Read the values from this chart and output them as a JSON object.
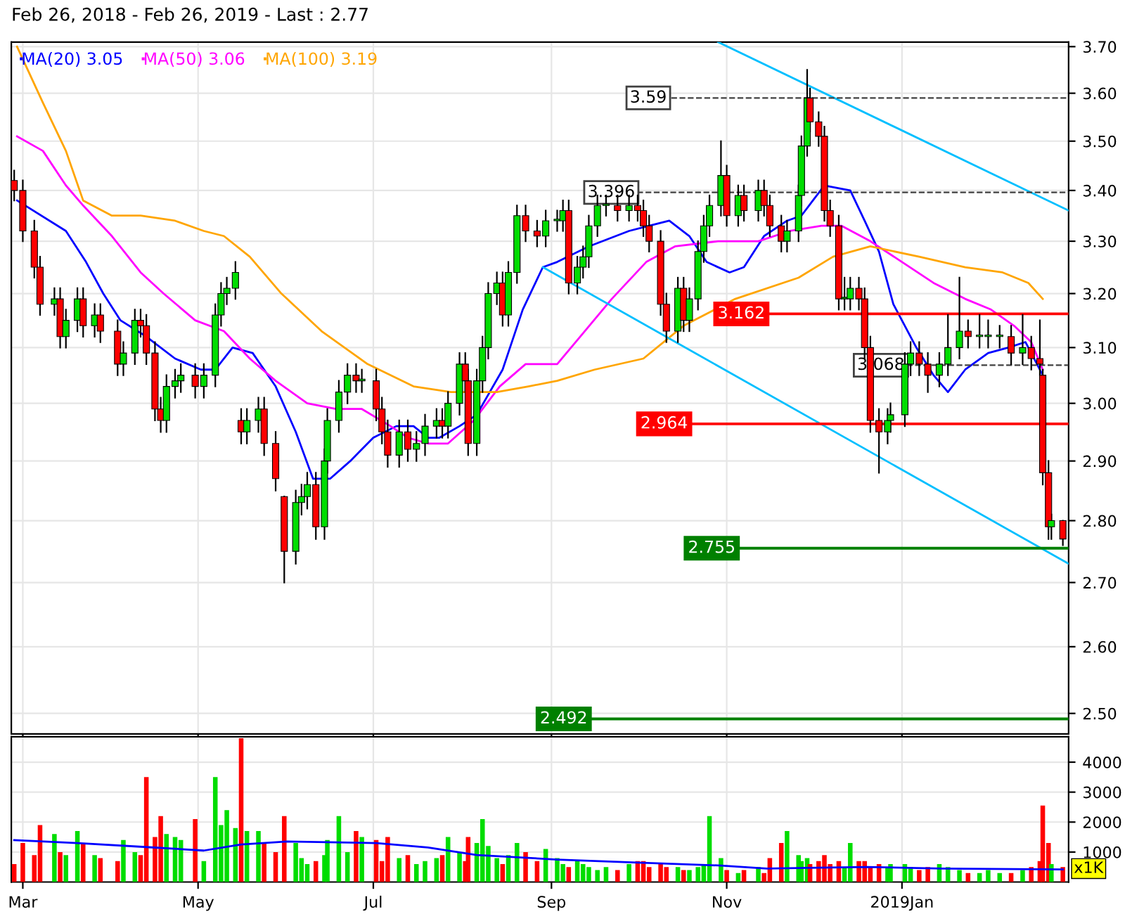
{
  "chart_data": [
    {
      "type": "candlestick",
      "title": "Feb 26, 2018 - Feb 26, 2019 - Last : 2.77",
      "legend": "top left",
      "log": true,
      "grid": true,
      "tick_labels": "y",
      "xlim": [
        "2018-02-25",
        "2019-02-28"
      ],
      "xticks": [
        {
          "value": "2018-03-01",
          "label": null
        },
        {
          "value": "2018-05-01",
          "label": null
        },
        {
          "value": "2018-07-01",
          "label": null
        },
        {
          "value": "2018-09-01",
          "label": null
        },
        {
          "value": "2018-11-01",
          "label": null
        },
        {
          "value": "2019-01-01",
          "label": null
        }
      ],
      "ylim": [
        2.47,
        3.71
      ],
      "yticks": [
        {
          "value": 2.5,
          "label": "2.50"
        },
        {
          "value": 2.6,
          "label": "2.60"
        },
        {
          "value": 2.7,
          "label": "2.70"
        },
        {
          "value": 2.8,
          "label": "2.80"
        },
        {
          "value": 2.9,
          "label": "2.90"
        },
        {
          "value": 3.0,
          "label": "3.00"
        },
        {
          "value": 3.1,
          "label": "3.10"
        },
        {
          "value": 3.2,
          "label": "3.20"
        },
        {
          "value": 3.3,
          "label": "3.30"
        },
        {
          "value": 3.4,
          "label": "3.40"
        },
        {
          "value": 3.5,
          "label": "3.50"
        },
        {
          "value": 3.6,
          "label": "3.60"
        },
        {
          "value": 3.7,
          "label": "3.70"
        }
      ],
      "x": [
        "2018-02-26",
        "2018-03-01",
        "2018-03-05",
        "2018-03-07",
        "2018-03-12",
        "2018-03-14",
        "2018-03-16",
        "2018-03-20",
        "2018-03-22",
        "2018-03-26",
        "2018-03-28",
        "2018-04-03",
        "2018-04-05",
        "2018-04-09",
        "2018-04-11",
        "2018-04-13",
        "2018-04-16",
        "2018-04-18",
        "2018-04-20",
        "2018-04-23",
        "2018-04-25",
        "2018-04-30",
        "2018-05-03",
        "2018-05-07",
        "2018-05-09",
        "2018-05-11",
        "2018-05-14",
        "2018-05-16",
        "2018-05-18",
        "2018-05-22",
        "2018-05-24",
        "2018-05-28",
        "2018-05-31",
        "2018-06-04",
        "2018-06-06",
        "2018-06-08",
        "2018-06-11",
        "2018-06-14",
        "2018-06-15",
        "2018-06-19",
        "2018-06-22",
        "2018-06-25",
        "2018-06-27",
        "2018-07-02",
        "2018-07-04",
        "2018-07-06",
        "2018-07-10",
        "2018-07-13",
        "2018-07-16",
        "2018-07-19",
        "2018-07-23",
        "2018-07-25",
        "2018-07-27",
        "2018-07-31",
        "2018-08-02",
        "2018-08-03",
        "2018-08-06",
        "2018-08-08",
        "2018-08-10",
        "2018-08-13",
        "2018-08-15",
        "2018-08-17",
        "2018-08-20",
        "2018-08-23",
        "2018-08-27",
        "2018-08-30",
        "2018-09-03",
        "2018-09-05",
        "2018-09-07",
        "2018-09-10",
        "2018-09-12",
        "2018-09-14",
        "2018-09-17",
        "2018-09-20",
        "2018-09-24",
        "2018-09-28",
        "2018-10-01",
        "2018-10-03",
        "2018-10-05",
        "2018-10-09",
        "2018-10-11",
        "2018-10-15",
        "2018-10-17",
        "2018-10-19",
        "2018-10-22",
        "2018-10-24",
        "2018-10-26",
        "2018-10-30",
        "2018-11-01",
        "2018-11-05",
        "2018-11-07",
        "2018-11-12",
        "2018-11-14",
        "2018-11-16",
        "2018-11-20",
        "2018-11-22",
        "2018-11-26",
        "2018-11-27",
        "2018-11-29",
        "2018-11-30",
        "2018-12-03",
        "2018-12-05",
        "2018-12-07",
        "2018-12-10",
        "2018-12-12",
        "2018-12-14",
        "2018-12-17",
        "2018-12-19",
        "2018-12-21",
        "2018-12-24",
        "2018-12-27",
        "2018-12-28",
        "2019-01-02",
        "2019-01-04",
        "2019-01-07",
        "2019-01-10",
        "2019-01-14",
        "2019-01-17",
        "2019-01-21",
        "2019-01-24",
        "2019-01-28",
        "2019-01-31",
        "2019-02-04",
        "2019-02-08",
        "2019-02-12",
        "2019-02-15",
        "2019-02-18",
        "2019-02-19",
        "2019-02-21",
        "2019-02-22",
        "2019-02-26"
      ],
      "ohlc": [
        [
          3.42,
          3.44,
          3.38,
          3.4
        ],
        [
          3.4,
          3.42,
          3.3,
          3.32
        ],
        [
          3.32,
          3.34,
          3.23,
          3.25
        ],
        [
          3.25,
          3.27,
          3.16,
          3.18
        ],
        [
          3.18,
          3.21,
          3.16,
          3.19
        ],
        [
          3.19,
          3.21,
          3.1,
          3.12
        ],
        [
          3.12,
          3.17,
          3.1,
          3.15
        ],
        [
          3.15,
          3.21,
          3.13,
          3.19
        ],
        [
          3.19,
          3.21,
          3.12,
          3.14
        ],
        [
          3.14,
          3.18,
          3.12,
          3.16
        ],
        [
          3.16,
          3.18,
          3.11,
          3.13
        ],
        [
          3.13,
          3.15,
          3.05,
          3.07
        ],
        [
          3.07,
          3.11,
          3.05,
          3.09
        ],
        [
          3.09,
          3.17,
          3.07,
          3.15
        ],
        [
          3.15,
          3.17,
          3.12,
          3.14
        ],
        [
          3.14,
          3.16,
          3.07,
          3.09
        ],
        [
          3.09,
          3.11,
          2.97,
          2.99
        ],
        [
          2.99,
          3.01,
          2.95,
          2.97
        ],
        [
          2.97,
          3.05,
          2.95,
          3.03
        ],
        [
          3.03,
          3.06,
          3.01,
          3.04
        ],
        [
          3.04,
          3.07,
          3.02,
          3.05
        ],
        [
          3.05,
          3.07,
          3.01,
          3.03
        ],
        [
          3.03,
          3.07,
          3.01,
          3.05
        ],
        [
          3.05,
          3.18,
          3.03,
          3.16
        ],
        [
          3.16,
          3.22,
          3.14,
          3.2
        ],
        [
          3.2,
          3.23,
          3.18,
          3.21
        ],
        [
          3.21,
          3.26,
          3.19,
          3.24
        ],
        [
          2.97,
          2.99,
          2.93,
          2.95
        ],
        [
          2.95,
          2.99,
          2.93,
          2.97
        ],
        [
          2.97,
          3.01,
          2.95,
          2.99
        ],
        [
          2.99,
          3.01,
          2.91,
          2.93
        ],
        [
          2.93,
          2.95,
          2.85,
          2.87
        ],
        [
          2.84,
          2.84,
          2.7,
          2.75
        ],
        [
          2.75,
          2.85,
          2.73,
          2.83
        ],
        [
          2.83,
          2.86,
          2.81,
          2.84
        ],
        [
          2.84,
          2.88,
          2.82,
          2.86
        ],
        [
          2.86,
          2.88,
          2.77,
          2.79
        ],
        [
          2.79,
          2.92,
          2.77,
          2.9
        ],
        [
          2.9,
          2.99,
          2.88,
          2.97
        ],
        [
          2.97,
          3.04,
          2.95,
          3.02
        ],
        [
          3.02,
          3.07,
          3.0,
          3.05
        ],
        [
          3.05,
          3.07,
          3.02,
          3.04
        ],
        [
          3.04,
          3.06,
          3.02,
          3.04
        ],
        [
          3.04,
          3.06,
          2.97,
          2.99
        ],
        [
          2.99,
          3.01,
          2.93,
          2.95
        ],
        [
          2.95,
          2.97,
          2.89,
          2.91
        ],
        [
          2.91,
          2.97,
          2.89,
          2.95
        ],
        [
          2.95,
          2.97,
          2.9,
          2.92
        ],
        [
          2.92,
          2.95,
          2.9,
          2.93
        ],
        [
          2.93,
          2.98,
          2.91,
          2.96
        ],
        [
          2.96,
          2.99,
          2.94,
          2.97
        ],
        [
          2.97,
          2.99,
          2.94,
          2.96
        ],
        [
          2.96,
          3.02,
          2.94,
          3.0
        ],
        [
          3.0,
          3.09,
          2.98,
          3.07
        ],
        [
          3.07,
          3.09,
          3.02,
          3.04
        ],
        [
          3.04,
          3.06,
          2.91,
          2.93
        ],
        [
          2.93,
          3.06,
          2.91,
          3.04
        ],
        [
          3.04,
          3.12,
          3.02,
          3.1
        ],
        [
          3.1,
          3.22,
          3.08,
          3.2
        ],
        [
          3.2,
          3.24,
          3.18,
          3.22
        ],
        [
          3.22,
          3.24,
          3.14,
          3.16
        ],
        [
          3.16,
          3.26,
          3.14,
          3.24
        ],
        [
          3.24,
          3.37,
          3.22,
          3.35
        ],
        [
          3.35,
          3.37,
          3.3,
          3.32
        ],
        [
          3.32,
          3.34,
          3.29,
          3.31
        ],
        [
          3.31,
          3.36,
          3.29,
          3.34
        ],
        [
          3.34,
          3.36,
          3.32,
          3.34
        ],
        [
          3.34,
          3.38,
          3.32,
          3.36
        ],
        [
          3.36,
          3.38,
          3.2,
          3.22
        ],
        [
          3.22,
          3.27,
          3.2,
          3.25
        ],
        [
          3.25,
          3.29,
          3.23,
          3.27
        ],
        [
          3.27,
          3.35,
          3.25,
          3.33
        ],
        [
          3.33,
          3.39,
          3.31,
          3.37
        ],
        [
          3.37,
          3.39,
          3.35,
          3.37
        ],
        [
          3.37,
          3.39,
          3.34,
          3.36
        ],
        [
          3.36,
          3.39,
          3.34,
          3.37
        ],
        [
          3.37,
          3.39,
          3.34,
          3.36
        ],
        [
          3.36,
          3.38,
          3.31,
          3.33
        ],
        [
          3.33,
          3.35,
          3.28,
          3.3
        ],
        [
          3.3,
          3.32,
          3.16,
          3.18
        ],
        [
          3.18,
          3.2,
          3.11,
          3.13
        ],
        [
          3.13,
          3.23,
          3.11,
          3.21
        ],
        [
          3.21,
          3.23,
          3.13,
          3.15
        ],
        [
          3.15,
          3.21,
          3.13,
          3.19
        ],
        [
          3.19,
          3.3,
          3.17,
          3.28
        ],
        [
          3.28,
          3.35,
          3.26,
          3.33
        ],
        [
          3.33,
          3.39,
          3.31,
          3.37
        ],
        [
          3.37,
          3.5,
          3.35,
          3.43
        ],
        [
          3.43,
          3.45,
          3.33,
          3.35
        ],
        [
          3.35,
          3.41,
          3.33,
          3.39
        ],
        [
          3.39,
          3.41,
          3.34,
          3.36
        ],
        [
          3.36,
          3.42,
          3.34,
          3.4
        ],
        [
          3.4,
          3.42,
          3.35,
          3.37
        ],
        [
          3.37,
          3.39,
          3.31,
          3.33
        ],
        [
          3.33,
          3.35,
          3.28,
          3.3
        ],
        [
          3.3,
          3.34,
          3.28,
          3.32
        ],
        [
          3.32,
          3.41,
          3.3,
          3.39
        ],
        [
          3.39,
          3.51,
          3.37,
          3.49
        ],
        [
          3.49,
          3.65,
          3.47,
          3.59
        ],
        [
          3.59,
          3.61,
          3.52,
          3.54
        ],
        [
          3.54,
          3.56,
          3.49,
          3.51
        ],
        [
          3.51,
          3.53,
          3.34,
          3.36
        ],
        [
          3.36,
          3.38,
          3.31,
          3.33
        ],
        [
          3.33,
          3.35,
          3.17,
          3.19
        ],
        [
          3.19,
          3.23,
          3.17,
          3.19
        ],
        [
          3.19,
          3.23,
          3.17,
          3.21
        ],
        [
          3.21,
          3.23,
          3.17,
          3.19
        ],
        [
          3.19,
          3.21,
          3.08,
          3.1
        ],
        [
          3.1,
          3.12,
          2.95,
          2.97
        ],
        [
          2.97,
          2.99,
          2.88,
          2.95
        ],
        [
          2.95,
          2.99,
          2.93,
          2.97
        ],
        [
          2.97,
          3.0,
          2.95,
          2.98
        ],
        [
          2.98,
          3.09,
          2.96,
          3.07
        ],
        [
          3.07,
          3.11,
          3.05,
          3.09
        ],
        [
          3.09,
          3.11,
          3.05,
          3.07
        ],
        [
          3.07,
          3.09,
          3.02,
          3.05
        ],
        [
          3.05,
          3.09,
          3.03,
          3.07
        ],
        [
          3.07,
          3.16,
          3.05,
          3.1
        ],
        [
          3.1,
          3.23,
          3.08,
          3.13
        ],
        [
          3.13,
          3.15,
          3.1,
          3.12
        ],
        [
          3.12,
          3.16,
          3.1,
          3.12
        ],
        [
          3.12,
          3.15,
          3.1,
          3.12
        ],
        [
          3.12,
          3.14,
          3.1,
          3.12
        ],
        [
          3.12,
          3.14,
          3.07,
          3.09
        ],
        [
          3.09,
          3.16,
          3.07,
          3.1
        ],
        [
          3.1,
          3.12,
          3.06,
          3.08
        ],
        [
          3.08,
          3.15,
          3.05,
          3.07
        ],
        [
          3.05,
          3.06,
          2.86,
          2.88
        ],
        [
          2.88,
          2.9,
          2.77,
          2.79
        ],
        [
          2.79,
          2.81,
          2.77,
          2.8
        ],
        [
          2.8,
          2.8,
          2.76,
          2.77
        ]
      ],
      "series": [
        {
          "name": "MA(20) 3.05",
          "type": "line",
          "color": "#0000ff",
          "x": [
            "2018-02-27",
            "2018-03-16",
            "2018-03-23",
            "2018-03-29",
            "2018-04-04",
            "2018-04-13",
            "2018-04-23",
            "2018-05-02",
            "2018-05-07",
            "2018-05-13",
            "2018-05-20",
            "2018-05-28",
            "2018-06-04",
            "2018-06-10",
            "2018-06-16",
            "2018-06-23",
            "2018-07-01",
            "2018-07-09",
            "2018-07-15",
            "2018-07-20",
            "2018-07-24",
            "2018-07-31",
            "2018-08-06",
            "2018-08-15",
            "2018-08-22",
            "2018-08-29",
            "2018-09-03",
            "2018-09-14",
            "2018-09-28",
            "2018-10-05",
            "2018-10-12",
            "2018-10-19",
            "2018-10-25",
            "2018-11-02",
            "2018-11-07",
            "2018-11-14",
            "2018-11-22",
            "2018-11-27",
            "2018-12-01",
            "2018-12-05",
            "2018-12-14",
            "2018-12-19",
            "2018-12-24",
            "2018-12-29",
            "2019-01-06",
            "2019-01-12",
            "2019-01-17",
            "2019-01-23",
            "2019-01-31",
            "2019-02-07",
            "2019-02-13",
            "2019-02-19"
          ],
          "values": [
            3.38,
            3.32,
            3.26,
            3.2,
            3.15,
            3.12,
            3.08,
            3.06,
            3.06,
            3.1,
            3.09,
            3.03,
            2.95,
            2.87,
            2.87,
            2.9,
            2.94,
            2.96,
            2.96,
            2.94,
            2.94,
            2.96,
            2.98,
            3.06,
            3.17,
            3.25,
            3.26,
            3.29,
            3.32,
            3.33,
            3.34,
            3.31,
            3.26,
            3.24,
            3.25,
            3.31,
            3.34,
            3.35,
            3.38,
            3.41,
            3.4,
            3.34,
            3.28,
            3.18,
            3.1,
            3.05,
            3.02,
            3.06,
            3.09,
            3.1,
            3.11,
            3.05
          ]
        },
        {
          "name": "MA(50) 3.06",
          "type": "line",
          "color": "#ff00ff",
          "x": [
            "2018-02-27",
            "2018-03-08",
            "2018-03-16",
            "2018-03-22",
            "2018-04-01",
            "2018-04-11",
            "2018-04-19",
            "2018-04-30",
            "2018-05-10",
            "2018-05-19",
            "2018-05-28",
            "2018-06-08",
            "2018-06-18",
            "2018-06-27",
            "2018-07-07",
            "2018-07-13",
            "2018-07-20",
            "2018-07-27",
            "2018-08-05",
            "2018-08-14",
            "2018-08-23",
            "2018-09-03",
            "2018-09-11",
            "2018-09-22",
            "2018-10-04",
            "2018-10-14",
            "2018-10-29",
            "2018-11-12",
            "2018-11-23",
            "2018-12-04",
            "2018-12-11",
            "2018-12-21",
            "2019-01-01",
            "2019-01-12",
            "2019-01-23",
            "2019-02-01",
            "2019-02-09",
            "2019-02-15",
            "2019-02-19"
          ],
          "values": [
            3.51,
            3.48,
            3.41,
            3.37,
            3.31,
            3.24,
            3.2,
            3.15,
            3.13,
            3.08,
            3.04,
            3.0,
            2.99,
            2.99,
            2.96,
            2.94,
            2.93,
            2.93,
            2.97,
            3.03,
            3.07,
            3.07,
            3.12,
            3.19,
            3.26,
            3.29,
            3.3,
            3.3,
            3.32,
            3.33,
            3.33,
            3.3,
            3.26,
            3.22,
            3.19,
            3.17,
            3.14,
            3.11,
            3.06
          ]
        },
        {
          "name": "MA(100) 3.19",
          "type": "line",
          "color": "#ffa500",
          "x": [
            "2018-02-27",
            "2018-03-08",
            "2018-03-16",
            "2018-03-22",
            "2018-04-01",
            "2018-04-11",
            "2018-04-23",
            "2018-05-03",
            "2018-05-10",
            "2018-05-19",
            "2018-05-30",
            "2018-06-13",
            "2018-06-29",
            "2018-07-15",
            "2018-07-28",
            "2018-08-13",
            "2018-08-24",
            "2018-09-03",
            "2018-09-16",
            "2018-10-03",
            "2018-10-17",
            "2018-11-04",
            "2018-11-26",
            "2018-12-08",
            "2018-12-21",
            "2019-01-07",
            "2019-01-23",
            "2019-02-05",
            "2019-02-14",
            "2019-02-19"
          ],
          "values": [
            3.7,
            3.58,
            3.48,
            3.38,
            3.35,
            3.35,
            3.34,
            3.32,
            3.31,
            3.27,
            3.2,
            3.13,
            3.07,
            3.03,
            3.02,
            3.02,
            3.03,
            3.04,
            3.06,
            3.08,
            3.14,
            3.19,
            3.23,
            3.27,
            3.29,
            3.27,
            3.25,
            3.24,
            3.22,
            3.19
          ]
        },
        {
          "type": "line",
          "color": "#00bfff",
          "x": [
            "2018-10-29",
            "2019-02-28"
          ],
          "values": [
            3.71,
            3.36
          ]
        },
        {
          "type": "line",
          "color": "#00bfff",
          "x": [
            "2018-08-29",
            "2019-02-28"
          ],
          "values": [
            3.25,
            2.73
          ]
        }
      ],
      "ref_lines": [
        {
          "axis": "y",
          "value": 3.59,
          "label": "3.59",
          "color": "#404040",
          "line_style": "dashed"
        },
        {
          "axis": "y",
          "value": 3.396,
          "label": "3.396",
          "color": "#404040",
          "line_style": "dashed"
        },
        {
          "axis": "y",
          "value": 3.162,
          "label": "3.162",
          "color": "#ff0000",
          "line_style": "solid"
        },
        {
          "axis": "y",
          "value": 3.068,
          "label": "3.068",
          "color": "#404040",
          "line_style": "dashed"
        },
        {
          "axis": "y",
          "value": 2.964,
          "label": "2.964",
          "color": "#ff0000",
          "line_style": "solid"
        },
        {
          "axis": "y",
          "value": 2.755,
          "label": "2.755",
          "color": "#008000",
          "line_style": "solid"
        },
        {
          "axis": "y",
          "value": 2.492,
          "label": "2.492",
          "color": "#008000",
          "line_style": "solid"
        }
      ]
    },
    {
      "type": "bar",
      "grid": true,
      "xlim": [
        "2018-02-25",
        "2019-02-28"
      ],
      "xticks": [
        {
          "value": "2018-03-01",
          "label": "Mar"
        },
        {
          "value": "2018-05-01",
          "label": "May"
        },
        {
          "value": "2018-07-01",
          "label": "Jul"
        },
        {
          "value": "2018-09-01",
          "label": "Sep"
        },
        {
          "value": "2018-11-01",
          "label": "Nov"
        },
        {
          "value": "2019-01-01",
          "label": "2019Jan"
        }
      ],
      "ylim": [
        0,
        4850
      ],
      "yticks": [
        1000,
        2000,
        3000,
        4000
      ],
      "annotations": [
        "x1K"
      ],
      "colors": [
        "#ff0000",
        "#ff0000",
        "#ff0000",
        "#ff0000",
        "#00dd00",
        "#ff0000",
        "#00dd00",
        "#00dd00",
        "#ff0000",
        "#00dd00",
        "#ff0000",
        "#ff0000",
        "#00dd00",
        "#00dd00",
        "#ff0000",
        "#ff0000",
        "#ff0000",
        "#ff0000",
        "#00dd00",
        "#00dd00",
        "#00dd00",
        "#ff0000",
        "#00dd00",
        "#00dd00",
        "#00dd00",
        "#00dd00",
        "#00dd00",
        "#ff0000",
        "#00dd00",
        "#00dd00",
        "#ff0000",
        "#ff0000",
        "#ff0000",
        "#00dd00",
        "#00dd00",
        "#00dd00",
        "#ff0000",
        "#00dd00",
        "#00dd00",
        "#00dd00",
        "#00dd00",
        "#ff0000",
        "#00dd00",
        "#ff0000",
        "#ff0000",
        "#ff0000",
        "#00dd00",
        "#ff0000",
        "#00dd00",
        "#00dd00",
        "#00dd00",
        "#ff0000",
        "#00dd00",
        "#00dd00",
        "#ff0000",
        "#ff0000",
        "#00dd00",
        "#00dd00",
        "#00dd00",
        "#00dd00",
        "#ff0000",
        "#00dd00",
        "#00dd00",
        "#ff0000",
        "#ff0000",
        "#00dd00",
        "#00dd00",
        "#00dd00",
        "#ff0000",
        "#00dd00",
        "#00dd00",
        "#00dd00",
        "#00dd00",
        "#00dd00",
        "#ff0000",
        "#00dd00",
        "#ff0000",
        "#ff0000",
        "#ff0000",
        "#ff0000",
        "#ff0000",
        "#00dd00",
        "#ff0000",
        "#00dd00",
        "#00dd00",
        "#00dd00",
        "#00dd00",
        "#00dd00",
        "#ff0000",
        "#00dd00",
        "#ff0000",
        "#00dd00",
        "#ff0000",
        "#ff0000",
        "#ff0000",
        "#00dd00",
        "#00dd00",
        "#00dd00",
        "#00dd00",
        "#ff0000",
        "#ff0000",
        "#ff0000",
        "#ff0000",
        "#ff0000",
        "#00dd00",
        "#00dd00",
        "#ff0000",
        "#ff0000",
        "#ff0000",
        "#ff0000",
        "#00dd00",
        "#00dd00",
        "#00dd00",
        "#00dd00",
        "#ff0000",
        "#ff0000",
        "#00dd00",
        "#00dd00",
        "#00dd00",
        "#ff0000",
        "#00dd00",
        "#00dd00",
        "#00dd00",
        "#ff0000",
        "#00dd00",
        "#ff0000",
        "#ff0000",
        "#ff0000",
        "#ff0000",
        "#00dd00",
        "#ff0000"
      ],
      "x": [
        "2018-02-26",
        "2018-03-01",
        "2018-03-05",
        "2018-03-07",
        "2018-03-12",
        "2018-03-14",
        "2018-03-16",
        "2018-03-20",
        "2018-03-22",
        "2018-03-26",
        "2018-03-28",
        "2018-04-03",
        "2018-04-05",
        "2018-04-09",
        "2018-04-11",
        "2018-04-13",
        "2018-04-16",
        "2018-04-18",
        "2018-04-20",
        "2018-04-23",
        "2018-04-25",
        "2018-04-30",
        "2018-05-03",
        "2018-05-07",
        "2018-05-09",
        "2018-05-11",
        "2018-05-14",
        "2018-05-16",
        "2018-05-18",
        "2018-05-22",
        "2018-05-24",
        "2018-05-28",
        "2018-05-31",
        "2018-06-04",
        "2018-06-06",
        "2018-06-08",
        "2018-06-11",
        "2018-06-14",
        "2018-06-15",
        "2018-06-19",
        "2018-06-22",
        "2018-06-25",
        "2018-06-27",
        "2018-07-02",
        "2018-07-04",
        "2018-07-06",
        "2018-07-10",
        "2018-07-13",
        "2018-07-16",
        "2018-07-19",
        "2018-07-23",
        "2018-07-25",
        "2018-07-27",
        "2018-07-31",
        "2018-08-02",
        "2018-08-03",
        "2018-08-06",
        "2018-08-08",
        "2018-08-10",
        "2018-08-13",
        "2018-08-15",
        "2018-08-17",
        "2018-08-20",
        "2018-08-23",
        "2018-08-27",
        "2018-08-30",
        "2018-09-03",
        "2018-09-05",
        "2018-09-07",
        "2018-09-10",
        "2018-09-12",
        "2018-09-14",
        "2018-09-17",
        "2018-09-20",
        "2018-09-24",
        "2018-09-28",
        "2018-10-01",
        "2018-10-03",
        "2018-10-05",
        "2018-10-09",
        "2018-10-11",
        "2018-10-15",
        "2018-10-17",
        "2018-10-19",
        "2018-10-22",
        "2018-10-24",
        "2018-10-26",
        "2018-10-30",
        "2018-11-01",
        "2018-11-05",
        "2018-11-07",
        "2018-11-12",
        "2018-11-14",
        "2018-11-16",
        "2018-11-20",
        "2018-11-22",
        "2018-11-26",
        "2018-11-27",
        "2018-11-29",
        "2018-11-30",
        "2018-12-03",
        "2018-12-05",
        "2018-12-07",
        "2018-12-10",
        "2018-12-12",
        "2018-12-14",
        "2018-12-17",
        "2018-12-19",
        "2018-12-21",
        "2018-12-24",
        "2018-12-27",
        "2018-12-28",
        "2019-01-02",
        "2019-01-04",
        "2019-01-07",
        "2019-01-10",
        "2019-01-14",
        "2019-01-17",
        "2019-01-21",
        "2019-01-24",
        "2019-01-28",
        "2019-01-31",
        "2019-02-04",
        "2019-02-08",
        "2019-02-12",
        "2019-02-15",
        "2019-02-18",
        "2019-02-19",
        "2019-02-21",
        "2019-02-22",
        "2019-02-26"
      ],
      "values": [
        600,
        1300,
        900,
        1900,
        1600,
        1000,
        900,
        1700,
        1300,
        900,
        800,
        700,
        1400,
        1000,
        900,
        3500,
        1500,
        2200,
        1600,
        1500,
        1400,
        2100,
        700,
        3500,
        1900,
        2400,
        1800,
        4800,
        1700,
        1700,
        1300,
        1000,
        2200,
        1300,
        800,
        600,
        700,
        900,
        1400,
        2200,
        1000,
        1700,
        1500,
        1400,
        700,
        1500,
        800,
        900,
        600,
        700,
        800,
        900,
        1500,
        1000,
        700,
        1500,
        1300,
        2100,
        1200,
        800,
        600,
        900,
        1300,
        1000,
        700,
        1100,
        800,
        600,
        500,
        700,
        600,
        500,
        400,
        500,
        400,
        600,
        700,
        700,
        500,
        600,
        500,
        500,
        400,
        400,
        500,
        600,
        2200,
        800,
        400,
        300,
        400,
        500,
        300,
        800,
        1300,
        1700,
        900,
        700,
        800,
        600,
        700,
        900,
        600,
        700,
        500,
        1300,
        700,
        700,
        500,
        600,
        500,
        600,
        600,
        500,
        400,
        500,
        600,
        500,
        400,
        300,
        300,
        400,
        300,
        300,
        400,
        500,
        700,
        2550,
        1300,
        600,
        500
      ],
      "series": [
        {
          "type": "line",
          "color": "#0000ff",
          "x": [
            "2018-02-26",
            "2018-03-20",
            "2018-04-16",
            "2018-05-03",
            "2018-05-16",
            "2018-06-01",
            "2018-07-02",
            "2018-07-20",
            "2018-08-06",
            "2018-09-03",
            "2018-10-01",
            "2018-10-30",
            "2018-11-15",
            "2018-12-03",
            "2018-12-20",
            "2019-01-15",
            "2019-02-26"
          ],
          "values": [
            1400,
            1300,
            1150,
            1050,
            1250,
            1350,
            1300,
            1150,
            900,
            750,
            650,
            550,
            450,
            480,
            500,
            450,
            420
          ]
        }
      ]
    }
  ]
}
